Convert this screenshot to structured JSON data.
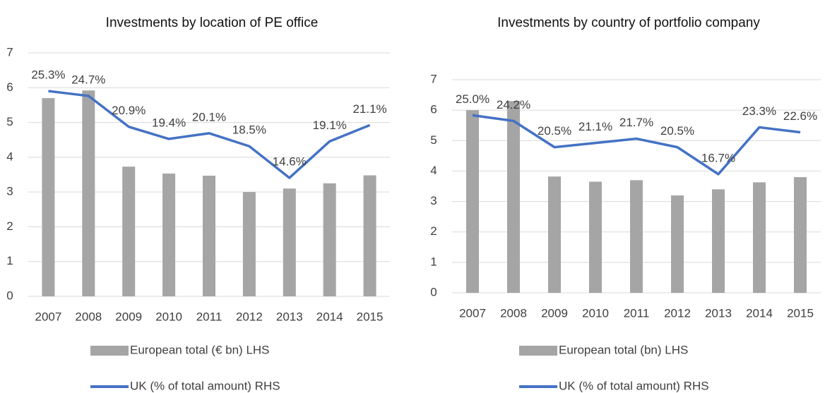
{
  "chart_data": [
    {
      "type": "bar_line",
      "title": "Investments by location of PE office",
      "categories": [
        "2007",
        "2008",
        "2009",
        "2010",
        "2011",
        "2012",
        "2013",
        "2014",
        "2015"
      ],
      "series": [
        {
          "name": "European total (€ bn) LHS",
          "type": "bar",
          "color": "#a5a5a5",
          "values": [
            5.7,
            5.92,
            3.73,
            3.53,
            3.47,
            3.0,
            3.1,
            3.25,
            3.48
          ]
        },
        {
          "name": "UK (% of total amount) RHS",
          "type": "line",
          "axis": "y2",
          "color": "#4472c4",
          "values": [
            25.3,
            24.7,
            20.9,
            19.4,
            20.1,
            18.5,
            14.6,
            19.1,
            21.1
          ],
          "value_labels": [
            "25.3%",
            "24.7%",
            "20.9%",
            "19.4%",
            "20.1%",
            "18.5%",
            "14.6%",
            "19.1%",
            "21.1%"
          ]
        }
      ],
      "ylim": [
        0,
        7
      ],
      "yticks": [
        0,
        1,
        2,
        3,
        4,
        5,
        6,
        7
      ],
      "y2lim": [
        0,
        30
      ],
      "grid": true,
      "legend": "bottom"
    },
    {
      "type": "bar_line",
      "title": "Investments by country of portfolio company",
      "categories": [
        "2007",
        "2008",
        "2009",
        "2010",
        "2011",
        "2012",
        "2013",
        "2014",
        "2015"
      ],
      "series": [
        {
          "name": "European total (bn) LHS",
          "type": "bar",
          "color": "#a5a5a5",
          "values": [
            6.0,
            6.3,
            3.82,
            3.65,
            3.7,
            3.2,
            3.4,
            3.63,
            3.8
          ]
        },
        {
          "name": "UK (% of total amount) RHS",
          "type": "line",
          "axis": "y2",
          "color": "#4472c4",
          "values": [
            25.0,
            24.2,
            20.5,
            21.1,
            21.7,
            20.5,
            16.7,
            23.3,
            22.6
          ],
          "value_labels": [
            "25.0%",
            "24.2%",
            "20.5%",
            "21.1%",
            "21.7%",
            "20.5%",
            "16.7%",
            "23.3%",
            "22.6%"
          ]
        }
      ],
      "ylim": [
        0,
        7
      ],
      "yticks": [
        0,
        1,
        2,
        3,
        4,
        5,
        6,
        7
      ],
      "y2lim": [
        0,
        30
      ],
      "grid": true,
      "legend": "bottom"
    }
  ]
}
